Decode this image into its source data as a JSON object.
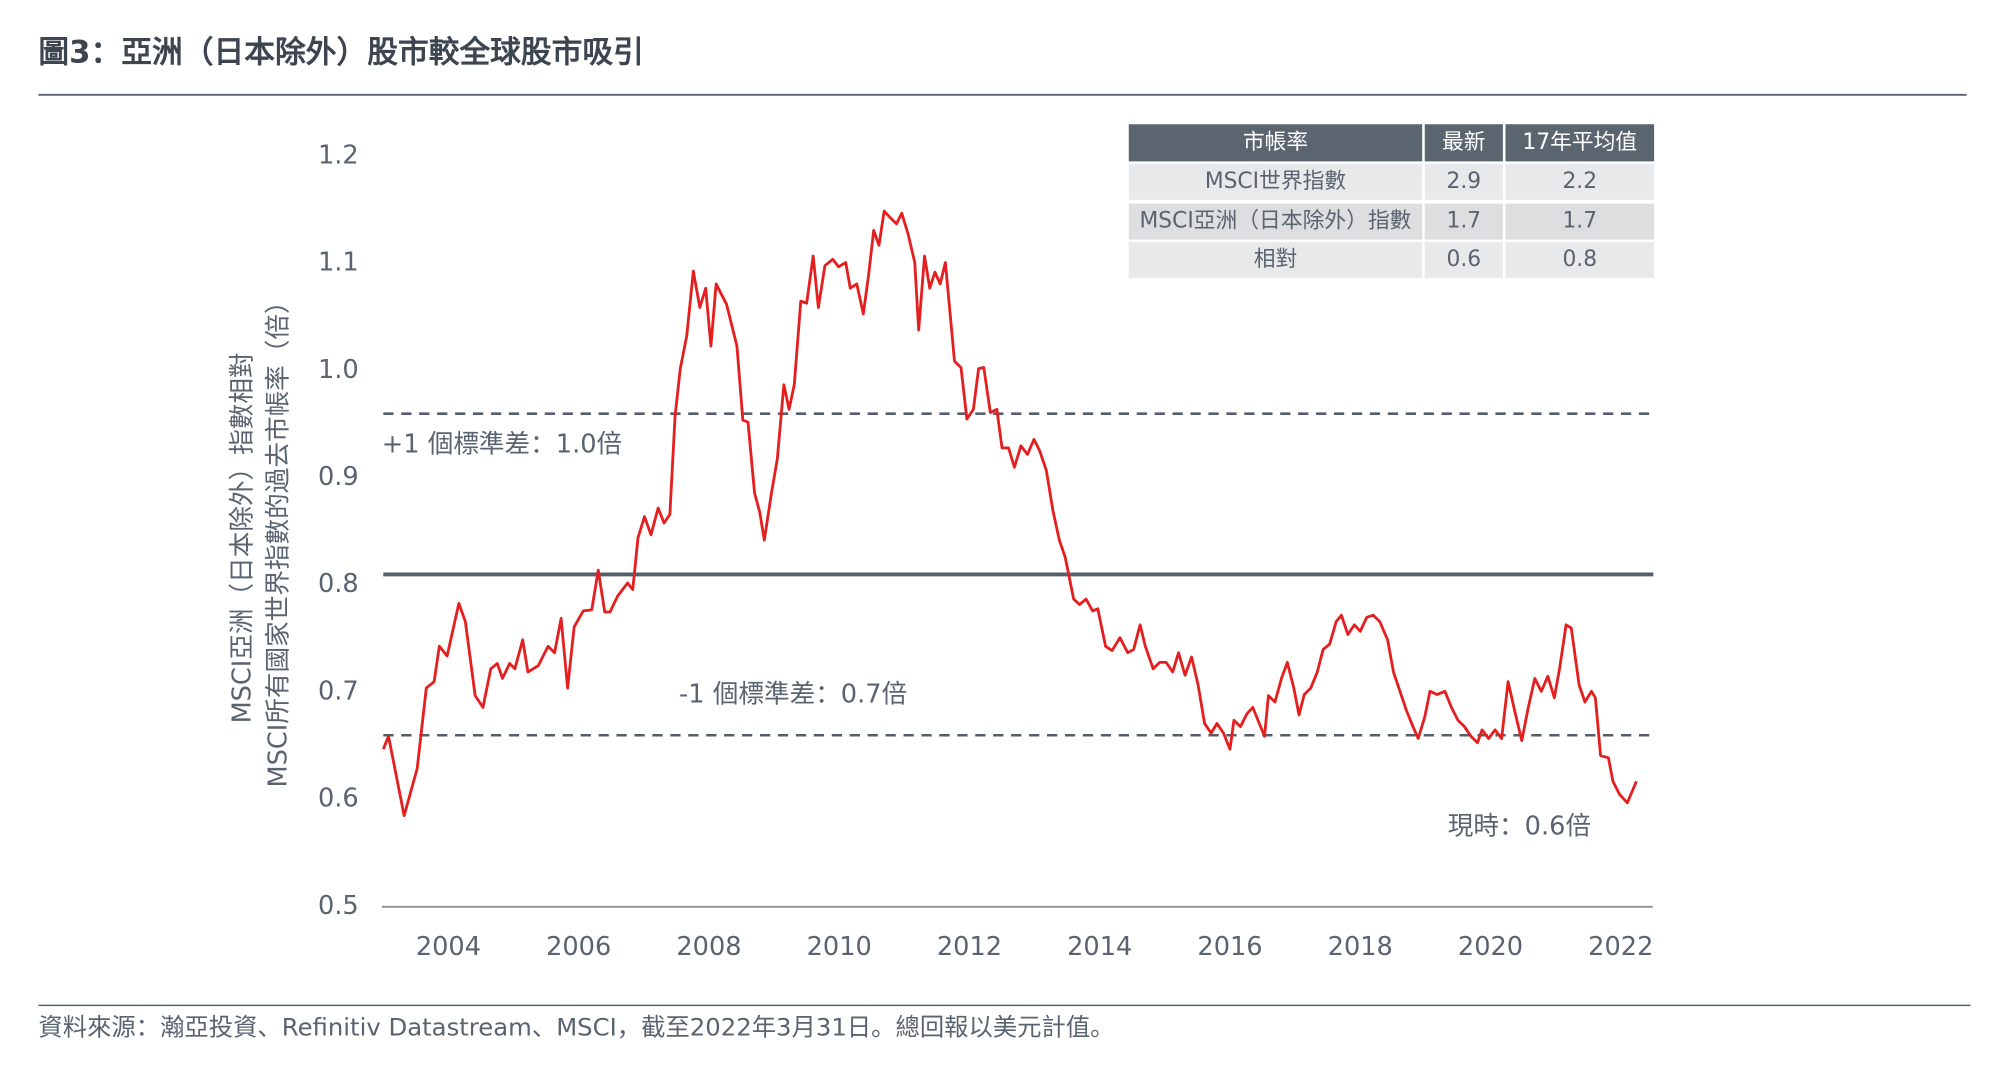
{
  "chart_data": {
    "type": "line",
    "title": "圖3：亞洲（日本除外）股市較全球股市吸引",
    "y_label": [
      "MSCI亞洲（日本除外）指數相對",
      "MSCI所有國家世界指數的過去市帳率（倍）"
    ],
    "source": "資料來源：瀚亞投資、Refinitiv Datastream、MSCI，截至2022年3月31日。總回報以美元計值。",
    "xlim": [
      2003,
      2022.5
    ],
    "xticks": [
      2004,
      2006,
      2008,
      2010,
      2012,
      2014,
      2016,
      2018,
      2020,
      2022
    ],
    "ylim": [
      0.5,
      1.2
    ],
    "yticks": [
      {
        "value": 0.5,
        "label": "0.5"
      },
      {
        "value": 0.6,
        "label": "0.6"
      },
      {
        "value": 0.7,
        "label": "0.7"
      },
      {
        "value": 0.8,
        "label": "0.8"
      },
      {
        "value": 0.9,
        "label": "0.9"
      },
      {
        "value": 1.0,
        "label": "1.0"
      },
      {
        "value": 1.1,
        "label": "1.1"
      },
      {
        "value": 1.2,
        "label": "1.2"
      }
    ],
    "reference_lines": [
      {
        "value": 0.96,
        "label": "+1 個標準差：1.0倍",
        "style": "dashed",
        "color": "#555f6b"
      },
      {
        "value": 0.81,
        "style": "solid",
        "color": "#555f6b"
      },
      {
        "value": 0.66,
        "label": "-1 個標準差：0.7倍",
        "style": "dashed",
        "color": "#555f6b"
      }
    ],
    "annotation": "現時：0.6倍",
    "x": [
      2003.0,
      2003.08,
      2003.32,
      2003.52,
      2003.66,
      2003.78,
      2003.86,
      2003.98,
      2004.16,
      2004.26,
      2004.41,
      2004.53,
      2004.65,
      2004.75,
      2004.83,
      2004.94,
      2005.02,
      2005.14,
      2005.22,
      2005.38,
      2005.53,
      2005.63,
      2005.73,
      2005.83,
      2005.93,
      2006.07,
      2006.2,
      2006.3,
      2006.4,
      2006.48,
      2006.6,
      2006.75,
      2006.83,
      2006.91,
      2007.01,
      2007.11,
      2007.22,
      2007.31,
      2007.4,
      2007.48,
      2007.56,
      2007.66,
      2007.76,
      2007.86,
      2007.95,
      2008.03,
      2008.11,
      2008.27,
      2008.43,
      2008.52,
      2008.6,
      2008.7,
      2008.78,
      2008.85,
      2008.96,
      2009.05,
      2009.15,
      2009.23,
      2009.31,
      2009.41,
      2009.5,
      2009.6,
      2009.68,
      2009.78,
      2009.9,
      2009.99,
      2010.1,
      2010.17,
      2010.27,
      2010.37,
      2010.45,
      2010.53,
      2010.61,
      2010.69,
      2010.78,
      2010.88,
      2010.96,
      2011.06,
      2011.16,
      2011.22,
      2011.31,
      2011.39,
      2011.47,
      2011.55,
      2011.63,
      2011.77,
      2011.87,
      2011.96,
      2012.06,
      2012.14,
      2012.22,
      2012.32,
      2012.42,
      2012.5,
      2012.6,
      2012.69,
      2012.79,
      2012.89,
      2012.99,
      2013.08,
      2013.18,
      2013.28,
      2013.38,
      2013.47,
      2013.6,
      2013.69,
      2013.79,
      2013.89,
      2013.97,
      2014.09,
      2014.19,
      2014.31,
      2014.43,
      2014.52,
      2014.62,
      2014.7,
      2014.82,
      2014.92,
      2015.02,
      2015.12,
      2015.21,
      2015.31,
      2015.41,
      2015.51,
      2015.61,
      2015.71,
      2015.8,
      2015.9,
      2016.0,
      2016.06,
      2016.16,
      2016.26,
      2016.35,
      2016.43,
      2016.53,
      2016.59,
      2016.69,
      2016.79,
      2016.88,
      2016.98,
      2017.06,
      2017.14,
      2017.24,
      2017.34,
      2017.43,
      2017.53,
      2017.63,
      2017.71,
      2017.81,
      2017.91,
      2018.0,
      2018.1,
      2018.2,
      2018.3,
      2018.42,
      2018.51,
      2018.61,
      2018.71,
      2018.81,
      2018.89,
      2018.99,
      2019.07,
      2019.18,
      2019.3,
      2019.4,
      2019.5,
      2019.6,
      2019.7,
      2019.8,
      2019.87,
      2019.97,
      2020.07,
      2020.17,
      2020.27,
      2020.37,
      2020.48,
      2020.58,
      2020.68,
      2020.78,
      2020.88,
      2020.98,
      2021.06,
      2021.16,
      2021.24,
      2021.36,
      2021.45,
      2021.55,
      2021.61,
      2021.69,
      2021.81,
      2021.88,
      2021.98,
      2022.1,
      2022.24
    ],
    "series": [
      {
        "color": "#e3201f",
        "values": [
          0.647,
          0.659,
          0.585,
          0.629,
          0.704,
          0.71,
          0.743,
          0.734,
          0.783,
          0.766,
          0.697,
          0.686,
          0.722,
          0.727,
          0.713,
          0.727,
          0.722,
          0.749,
          0.719,
          0.725,
          0.743,
          0.737,
          0.769,
          0.704,
          0.761,
          0.776,
          0.777,
          0.814,
          0.775,
          0.775,
          0.79,
          0.802,
          0.796,
          0.844,
          0.864,
          0.847,
          0.872,
          0.858,
          0.866,
          0.958,
          1.002,
          1.033,
          1.093,
          1.059,
          1.077,
          1.023,
          1.081,
          1.062,
          1.023,
          0.954,
          0.952,
          0.886,
          0.868,
          0.842,
          0.886,
          0.918,
          0.987,
          0.964,
          0.987,
          1.065,
          1.063,
          1.107,
          1.059,
          1.098,
          1.104,
          1.097,
          1.101,
          1.077,
          1.081,
          1.053,
          1.089,
          1.131,
          1.117,
          1.149,
          1.143,
          1.137,
          1.147,
          1.127,
          1.101,
          1.038,
          1.107,
          1.077,
          1.092,
          1.081,
          1.101,
          1.009,
          1.003,
          0.955,
          0.964,
          1.002,
          1.003,
          0.961,
          0.964,
          0.928,
          0.928,
          0.91,
          0.93,
          0.922,
          0.936,
          0.925,
          0.907,
          0.87,
          0.842,
          0.826,
          0.787,
          0.782,
          0.787,
          0.776,
          0.778,
          0.743,
          0.739,
          0.751,
          0.737,
          0.74,
          0.763,
          0.743,
          0.722,
          0.728,
          0.728,
          0.719,
          0.737,
          0.716,
          0.733,
          0.707,
          0.671,
          0.662,
          0.671,
          0.662,
          0.647,
          0.674,
          0.668,
          0.68,
          0.686,
          0.674,
          0.659,
          0.697,
          0.691,
          0.713,
          0.728,
          0.704,
          0.679,
          0.698,
          0.704,
          0.719,
          0.74,
          0.745,
          0.766,
          0.772,
          0.754,
          0.763,
          0.757,
          0.77,
          0.772,
          0.766,
          0.749,
          0.719,
          0.701,
          0.683,
          0.668,
          0.657,
          0.677,
          0.701,
          0.698,
          0.701,
          0.686,
          0.674,
          0.668,
          0.659,
          0.653,
          0.665,
          0.657,
          0.665,
          0.657,
          0.71,
          0.683,
          0.655,
          0.686,
          0.713,
          0.701,
          0.715,
          0.695,
          0.722,
          0.763,
          0.76,
          0.707,
          0.691,
          0.701,
          0.695,
          0.641,
          0.639,
          0.617,
          0.605,
          0.597,
          0.617
        ]
      }
    ]
  },
  "table": {
    "header": [
      "市帳率",
      "最新",
      "17年平均值"
    ],
    "rows": [
      [
        "MSCI世界指數",
        "2.9",
        "2.2"
      ],
      [
        "MSCI亞洲（日本除外）指數",
        "1.7",
        "1.7"
      ],
      [
        "相對",
        "0.6",
        "0.8"
      ]
    ]
  }
}
